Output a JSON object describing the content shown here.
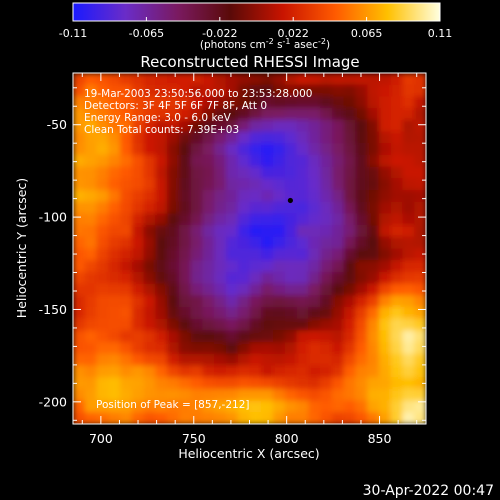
{
  "window": {
    "timestamp": "30-Apr-2022 00:47"
  },
  "colorbar": {
    "ticks": [
      "-0.11",
      "-0.065",
      "-0.022",
      "0.022",
      "0.065",
      "0.11"
    ],
    "units_prefix": "(photons cm",
    "units_exp1": "-2",
    "units_mid1": " s",
    "units_exp2": "-1",
    "units_mid2": " asec",
    "units_exp3": "-2",
    "units_suffix": ")",
    "colors": [
      "#1a1aff",
      "#6a2cc8",
      "#7a1a60",
      "#5a0a08",
      "#c81400",
      "#ff5a00",
      "#ffc000",
      "#ffffe0"
    ]
  },
  "info": {
    "time_range": "19-Mar-2003 23:50:56.000 to 23:53:28.000",
    "detectors": "Detectors: 3F 4F 5F 6F 7F 8F, Att 0",
    "energy": "Energy Range: 3.0 - 6.0 keV",
    "clean": "Clean      Total counts: 7.39E+03",
    "peak": "Position of Peak = [857,-212]"
  },
  "chart_data": {
    "type": "heatmap",
    "title": "Reconstructed RHESSI Image",
    "xlabel": "Heliocentric X (arcsec)",
    "ylabel": "Heliocentric Y (arcsec)",
    "xlim": [
      685,
      875
    ],
    "ylim": [
      -212,
      -22
    ],
    "xticks": [
      700,
      750,
      800,
      850
    ],
    "yticks": [
      -50,
      -100,
      -150,
      -200
    ],
    "value_range": [
      -0.11,
      0.11
    ],
    "peak": [
      857,
      -212
    ],
    "marker": [
      802,
      -91
    ],
    "grid": false
  }
}
